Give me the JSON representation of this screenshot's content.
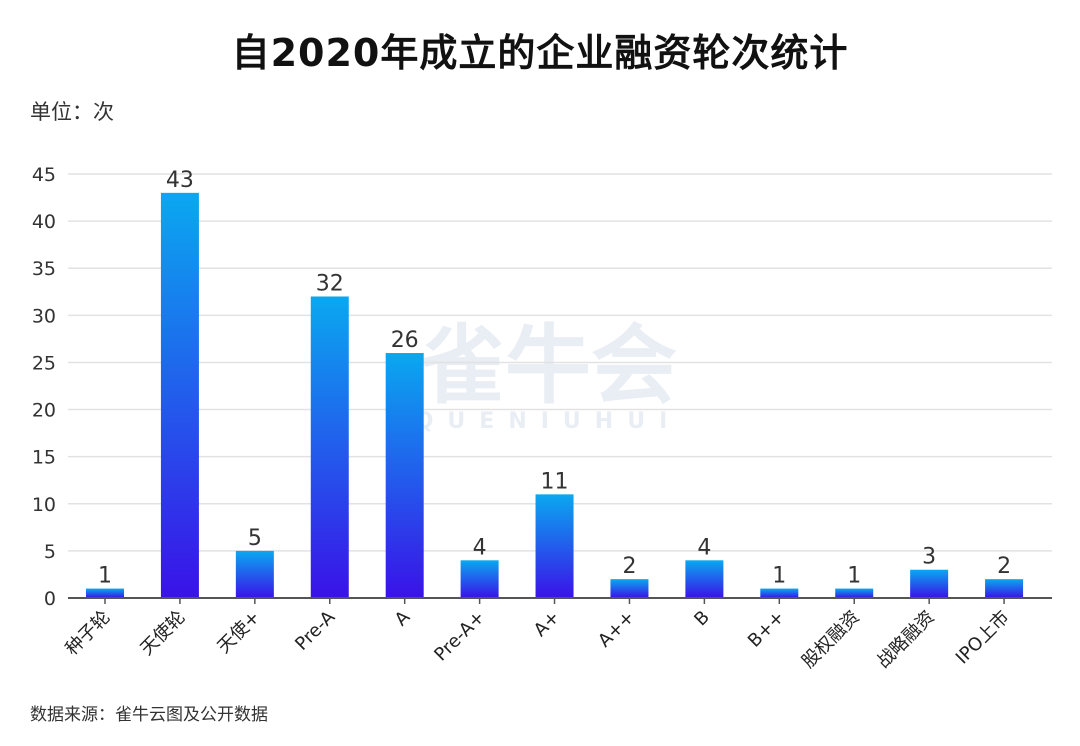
{
  "title": "自2020年成立的企业融资轮次统计",
  "unit_label": "单位：次",
  "source_label": "数据来源：雀牛云图及公开数据",
  "watermark": {
    "main": "雀牛会",
    "sub": "QUENIUHUI"
  },
  "colors": {
    "bar_top": "#0aa8f0",
    "bar_bottom": "#3a12e8",
    "grid": "#e2e2e2",
    "axis": "#555555"
  },
  "chart_data": {
    "type": "bar",
    "title": "自2020年成立的企业融资轮次统计",
    "ylabel": "单位：次",
    "xlabel": "",
    "categories": [
      "种子轮",
      "天使轮",
      "天使+",
      "Pre-A",
      "A",
      "Pre-A+",
      "A+",
      "A++",
      "B",
      "B++",
      "股权融资",
      "战略融资",
      "IPO上市"
    ],
    "values": [
      1,
      43,
      5,
      32,
      26,
      4,
      11,
      2,
      4,
      1,
      1,
      3,
      2
    ],
    "ylim": [
      0,
      45
    ],
    "yticks": [
      0,
      5,
      10,
      15,
      20,
      25,
      30,
      35,
      40,
      45
    ],
    "grid": true,
    "legend": "none"
  }
}
